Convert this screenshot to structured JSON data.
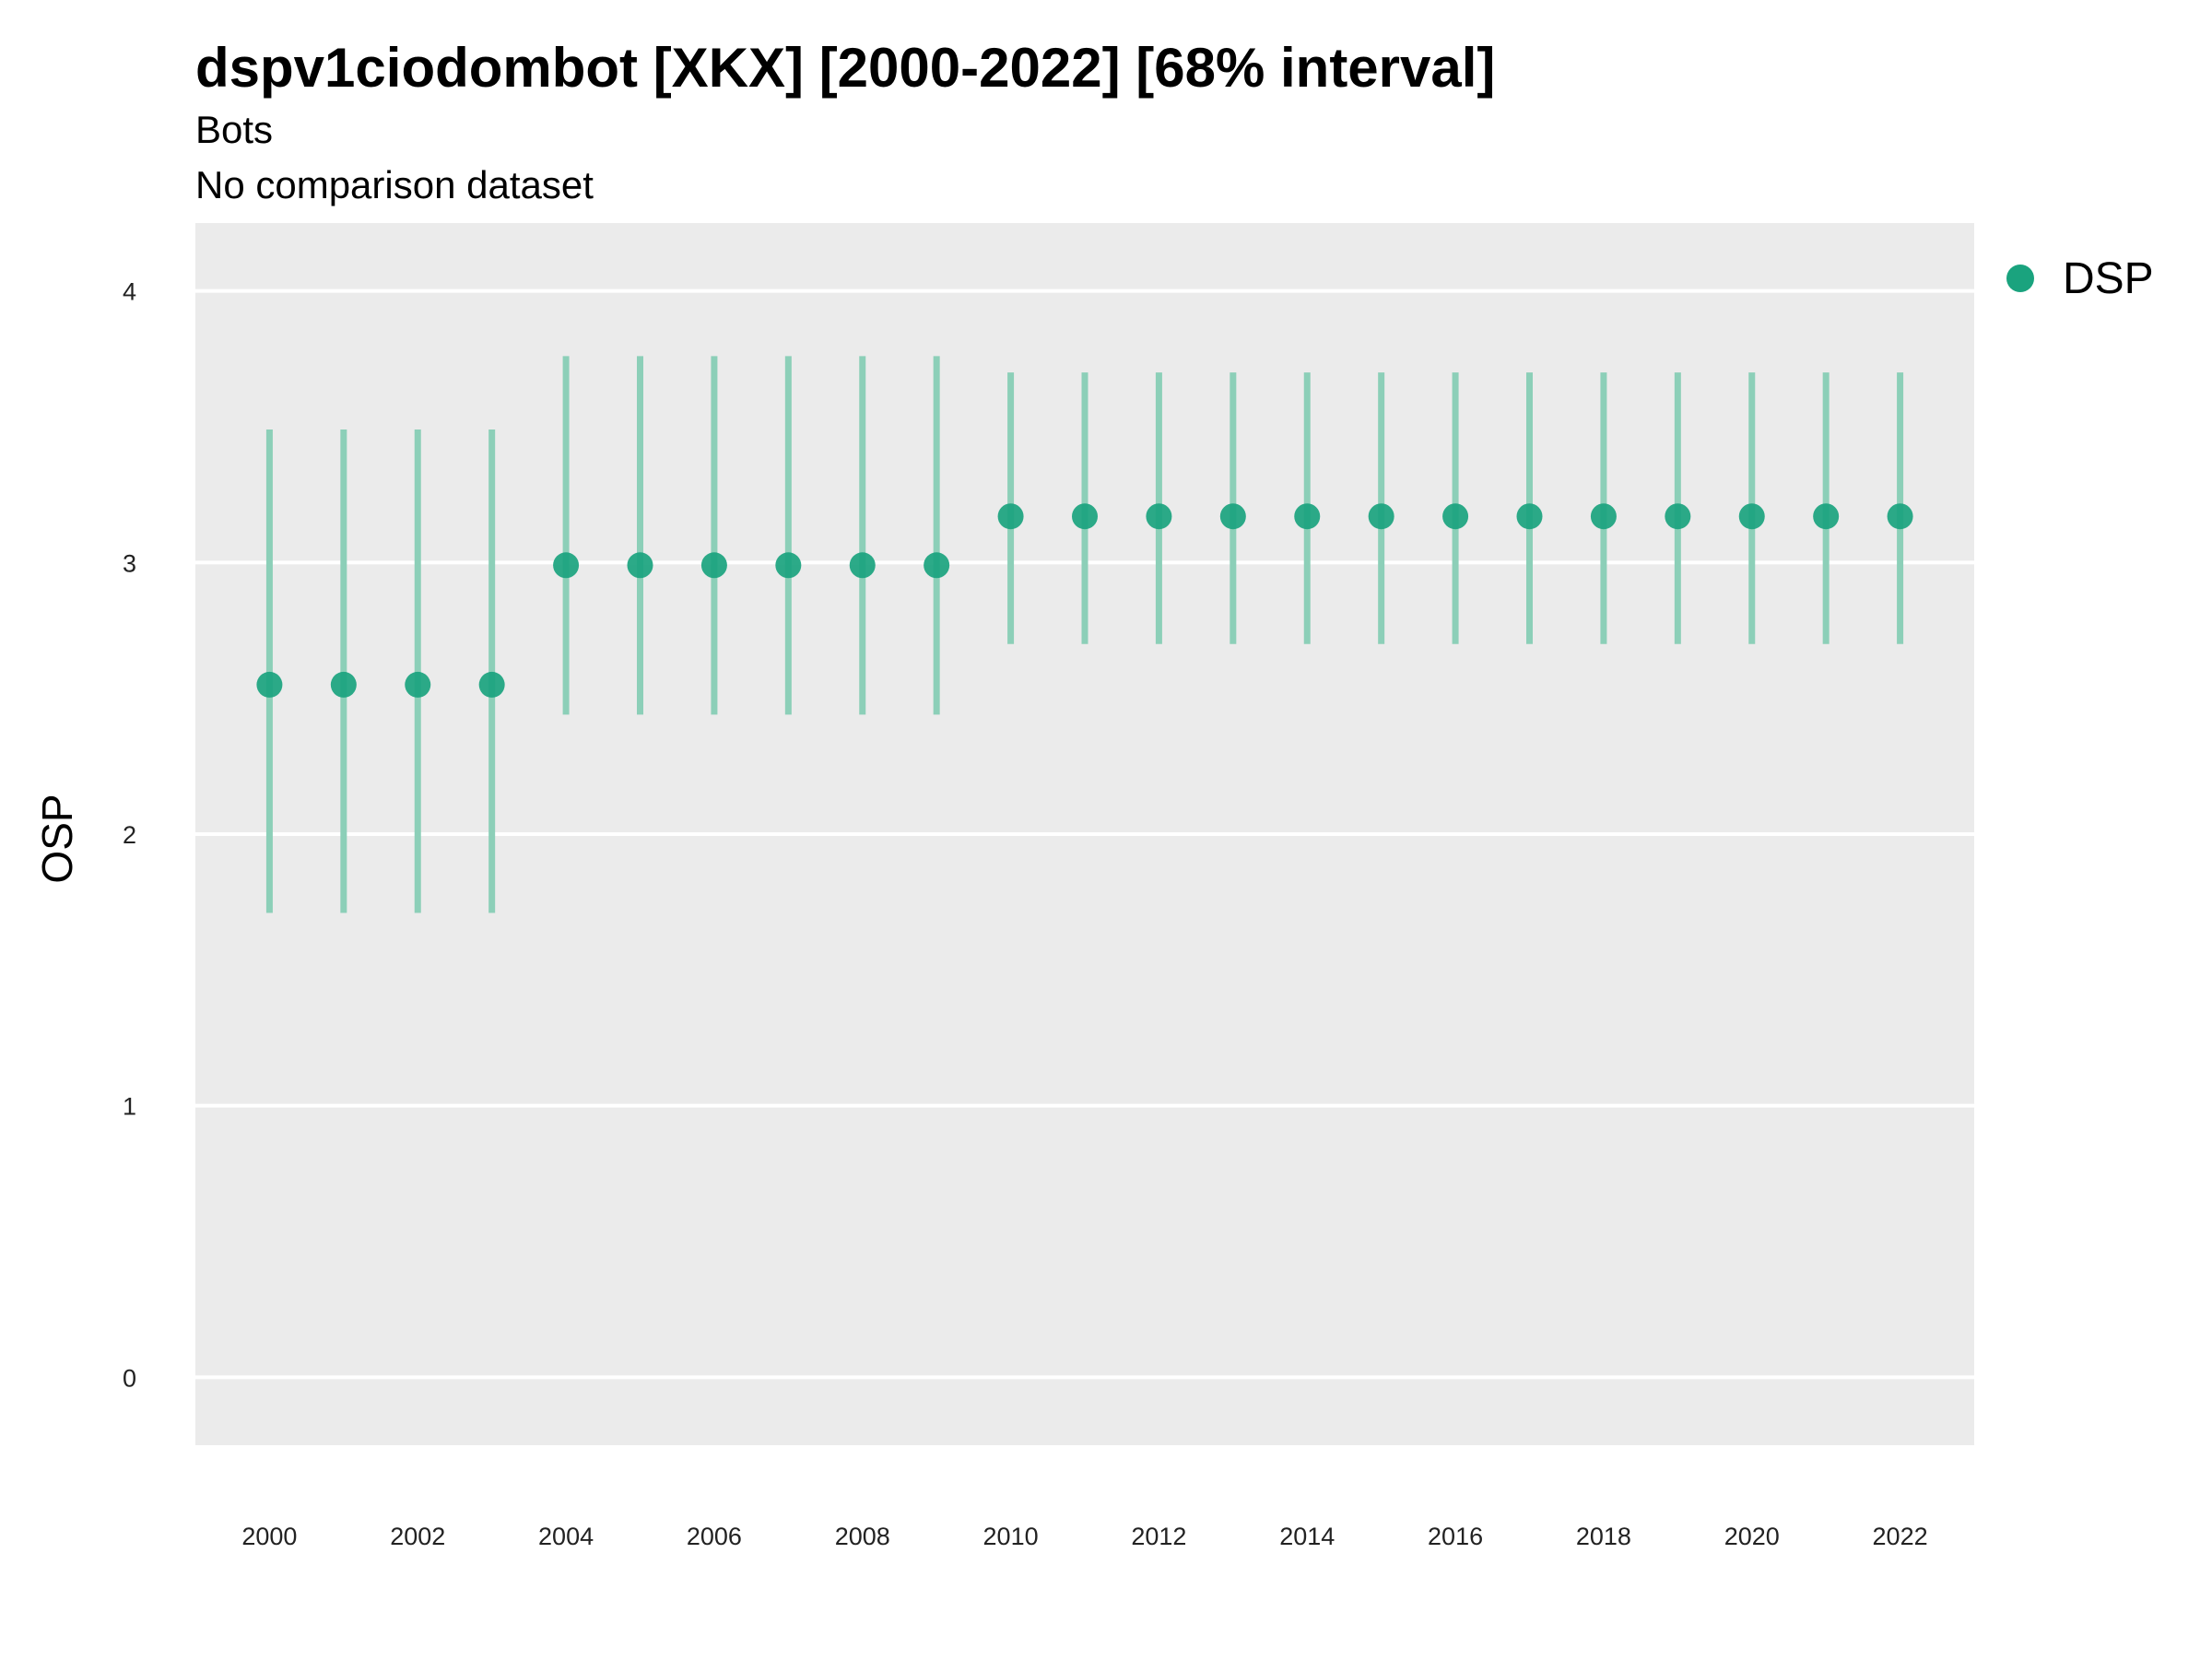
{
  "chart_data": {
    "type": "scatter",
    "title": "dspv1ciodombot [XKX] [2000-2022] [68% interval]",
    "subtitle": "Bots",
    "caption_line": "No comparison dataset",
    "xlabel": "",
    "ylabel": "OSP",
    "ylim": [
      -0.25,
      4.25
    ],
    "xlim": [
      1999,
      2023
    ],
    "y_ticks": [
      "0",
      "1",
      "2",
      "3",
      "4"
    ],
    "x_ticks": [
      "2000",
      "2002",
      "2004",
      "2006",
      "2008",
      "2010",
      "2012",
      "2014",
      "2016",
      "2018",
      "2020",
      "2022"
    ],
    "grid": true,
    "legend_position": "right",
    "series": [
      {
        "name": "DSP",
        "color": "#1aa37e",
        "interval_color": "#8ccfb8",
        "x": [
          2000,
          2001,
          2002,
          2003,
          2004,
          2005,
          2006,
          2007,
          2008,
          2009,
          2010,
          2011,
          2012,
          2013,
          2014,
          2015,
          2016,
          2017,
          2018,
          2019,
          2020,
          2021,
          2022
        ],
        "y": [
          2.55,
          2.55,
          2.55,
          2.55,
          2.99,
          2.99,
          2.99,
          2.99,
          2.99,
          2.99,
          3.17,
          3.17,
          3.17,
          3.17,
          3.17,
          3.17,
          3.17,
          3.17,
          3.17,
          3.17,
          3.17,
          3.17,
          3.17
        ],
        "lower": [
          1.71,
          1.71,
          1.71,
          1.71,
          2.44,
          2.44,
          2.44,
          2.44,
          2.44,
          2.44,
          2.7,
          2.7,
          2.7,
          2.7,
          2.7,
          2.7,
          2.7,
          2.7,
          2.7,
          2.7,
          2.7,
          2.7,
          2.7
        ],
        "upper": [
          3.49,
          3.49,
          3.49,
          3.49,
          3.76,
          3.76,
          3.76,
          3.76,
          3.76,
          3.76,
          3.7,
          3.7,
          3.7,
          3.7,
          3.7,
          3.7,
          3.7,
          3.7,
          3.7,
          3.7,
          3.7,
          3.7,
          3.7
        ]
      }
    ]
  }
}
